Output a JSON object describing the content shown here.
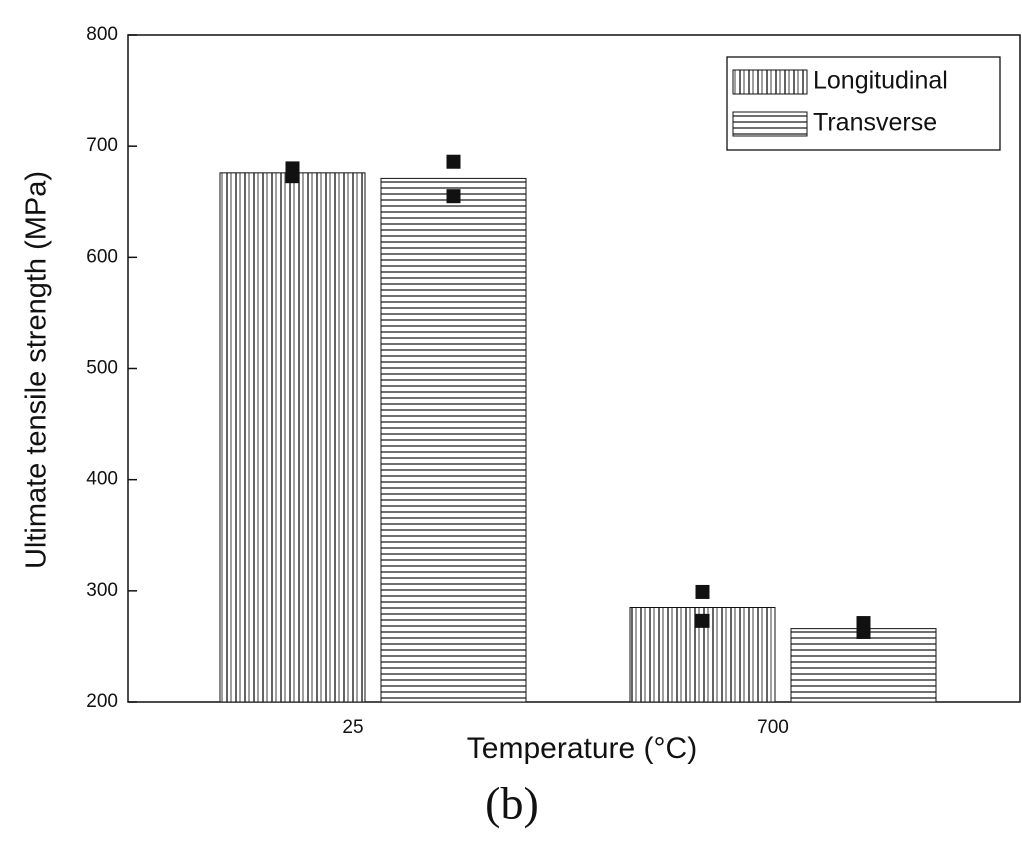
{
  "chart_data": {
    "type": "bar",
    "title": "(b)",
    "x_label": "Temperature (°C)",
    "y_label": "Ultimate tensile strength (MPa)",
    "categories": [
      "25",
      "700"
    ],
    "series": [
      {
        "name": "Longitudinal",
        "color": "#111111",
        "hatch": "vertical",
        "values": [
          676,
          285
        ],
        "points": [
          [
            680,
            673
          ],
          [
            299,
            273
          ]
        ]
      },
      {
        "name": "Transverse",
        "color": "#111111",
        "hatch": "horizontal",
        "values": [
          671,
          266
        ],
        "points": [
          [
            686,
            655
          ],
          [
            271,
            263
          ]
        ]
      }
    ],
    "ylim": [
      200,
      800
    ],
    "yticks": [
      200,
      300,
      400,
      500,
      600,
      700,
      800
    ],
    "grid": false,
    "legend": "upper right"
  }
}
